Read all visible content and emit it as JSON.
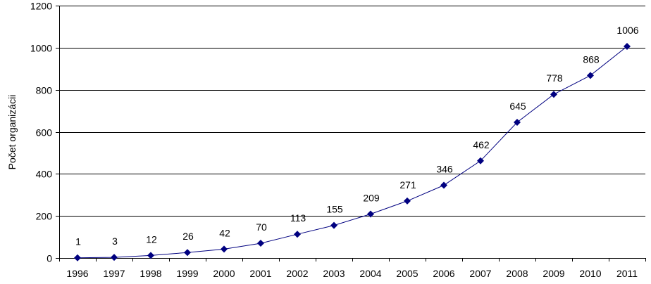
{
  "chart_data": {
    "type": "line",
    "title": "",
    "xlabel": "",
    "ylabel": "Počet organizácii",
    "ylim": [
      0,
      1200
    ],
    "yticks": [
      0,
      200,
      400,
      600,
      800,
      1000,
      1200
    ],
    "grid": true,
    "categories": [
      "1996",
      "1997",
      "1998",
      "1999",
      "2000",
      "2001",
      "2002",
      "2003",
      "2004",
      "2005",
      "2006",
      "2007",
      "2008",
      "2009",
      "2010",
      "2011"
    ],
    "series": [
      {
        "values": [
          1,
          3,
          12,
          26,
          42,
          70,
          113,
          155,
          209,
          271,
          346,
          462,
          645,
          778,
          868,
          1006
        ],
        "color": "#000080",
        "marker": "diamond"
      }
    ]
  }
}
